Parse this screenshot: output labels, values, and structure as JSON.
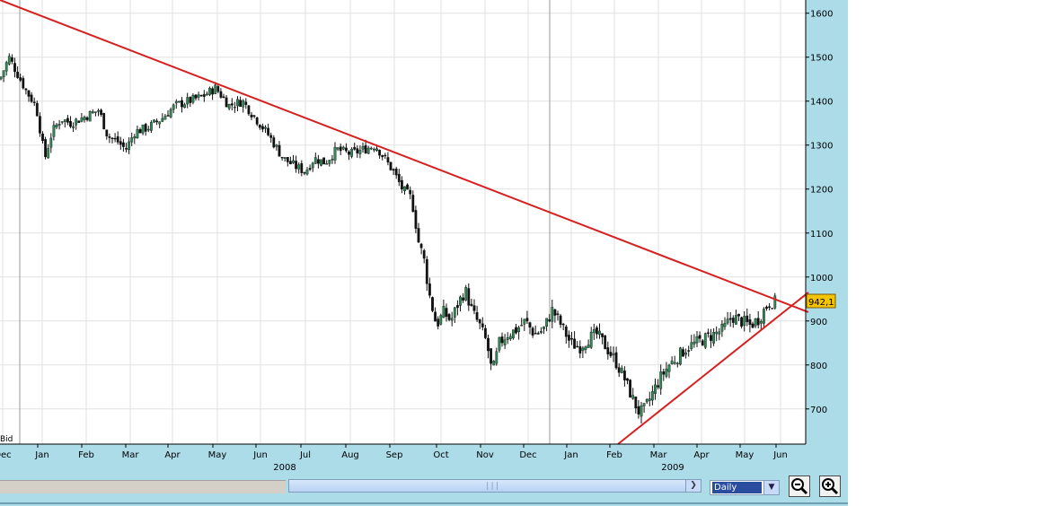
{
  "chart_data": {
    "type": "candlestick",
    "instrument_label": "Bid",
    "last_price_label": "942,1",
    "y_axis": {
      "ticks": [
        700,
        800,
        900,
        1000,
        1100,
        1200,
        1300,
        1400,
        1500,
        1600
      ],
      "range": [
        620,
        1630
      ]
    },
    "x_axis": {
      "months": [
        "Dec",
        "Jan",
        "Feb",
        "Mar",
        "Apr",
        "May",
        "Jun",
        "Jul",
        "Aug",
        "Sep",
        "Oct",
        "Nov",
        "Dec",
        "Jan",
        "Feb",
        "Mar",
        "Apr",
        "May",
        "Jun"
      ],
      "years": [
        "2008",
        "2009"
      ]
    },
    "close_path": [
      [
        0,
        1450
      ],
      [
        10,
        1500
      ],
      [
        20,
        1460
      ],
      [
        30,
        1420
      ],
      [
        40,
        1390
      ],
      [
        50,
        1270
      ],
      [
        58,
        1330
      ],
      [
        68,
        1360
      ],
      [
        78,
        1350
      ],
      [
        90,
        1360
      ],
      [
        100,
        1370
      ],
      [
        110,
        1380
      ],
      [
        120,
        1320
      ],
      [
        130,
        1310
      ],
      [
        140,
        1290
      ],
      [
        150,
        1330
      ],
      [
        165,
        1340
      ],
      [
        180,
        1360
      ],
      [
        195,
        1390
      ],
      [
        210,
        1400
      ],
      [
        225,
        1410
      ],
      [
        240,
        1430
      ],
      [
        255,
        1390
      ],
      [
        270,
        1400
      ],
      [
        285,
        1360
      ],
      [
        300,
        1320
      ],
      [
        315,
        1270
      ],
      [
        330,
        1250
      ],
      [
        340,
        1240
      ],
      [
        350,
        1270
      ],
      [
        362,
        1260
      ],
      [
        375,
        1290
      ],
      [
        390,
        1280
      ],
      [
        405,
        1290
      ],
      [
        418,
        1300
      ],
      [
        428,
        1270
      ],
      [
        438,
        1240
      ],
      [
        448,
        1200
      ],
      [
        458,
        1180
      ],
      [
        466,
        1080
      ],
      [
        472,
        1040
      ],
      [
        478,
        960
      ],
      [
        486,
        890
      ],
      [
        494,
        920
      ],
      [
        502,
        900
      ],
      [
        510,
        940
      ],
      [
        518,
        970
      ],
      [
        526,
        920
      ],
      [
        534,
        890
      ],
      [
        542,
        850
      ],
      [
        548,
        780
      ],
      [
        556,
        850
      ],
      [
        565,
        870
      ],
      [
        575,
        880
      ],
      [
        585,
        900
      ],
      [
        595,
        870
      ],
      [
        605,
        880
      ],
      [
        615,
        925
      ],
      [
        625,
        890
      ],
      [
        635,
        850
      ],
      [
        645,
        840
      ],
      [
        655,
        860
      ],
      [
        665,
        870
      ],
      [
        675,
        840
      ],
      [
        685,
        810
      ],
      [
        695,
        770
      ],
      [
        705,
        720
      ],
      [
        712,
        690
      ],
      [
        718,
        700
      ],
      [
        725,
        730
      ],
      [
        735,
        770
      ],
      [
        745,
        800
      ],
      [
        755,
        820
      ],
      [
        765,
        840
      ],
      [
        775,
        850
      ],
      [
        785,
        860
      ],
      [
        795,
        870
      ],
      [
        805,
        880
      ],
      [
        815,
        910
      ],
      [
        825,
        900
      ],
      [
        835,
        890
      ],
      [
        845,
        905
      ],
      [
        852,
        930
      ],
      [
        858,
        945
      ],
      [
        864,
        942
      ]
    ],
    "trendlines": [
      {
        "from": [
          "x",
          0,
          "y",
          1630
        ],
        "to": [
          "x",
          900,
          "y",
          920
        ]
      },
      {
        "from": [
          "x",
          688,
          "y",
          620
        ],
        "to": [
          "x",
          900,
          "y",
          965
        ]
      }
    ],
    "colors": {
      "up": "#2e8b57",
      "down": "#111111",
      "trend": "#d62020",
      "grid": "#e2e2e2",
      "label_bg": "#f5c400"
    }
  },
  "toolbar": {
    "period": "Daily",
    "zoom_out_icon": "zoom-out-icon",
    "zoom_in_icon": "zoom-in-icon"
  }
}
